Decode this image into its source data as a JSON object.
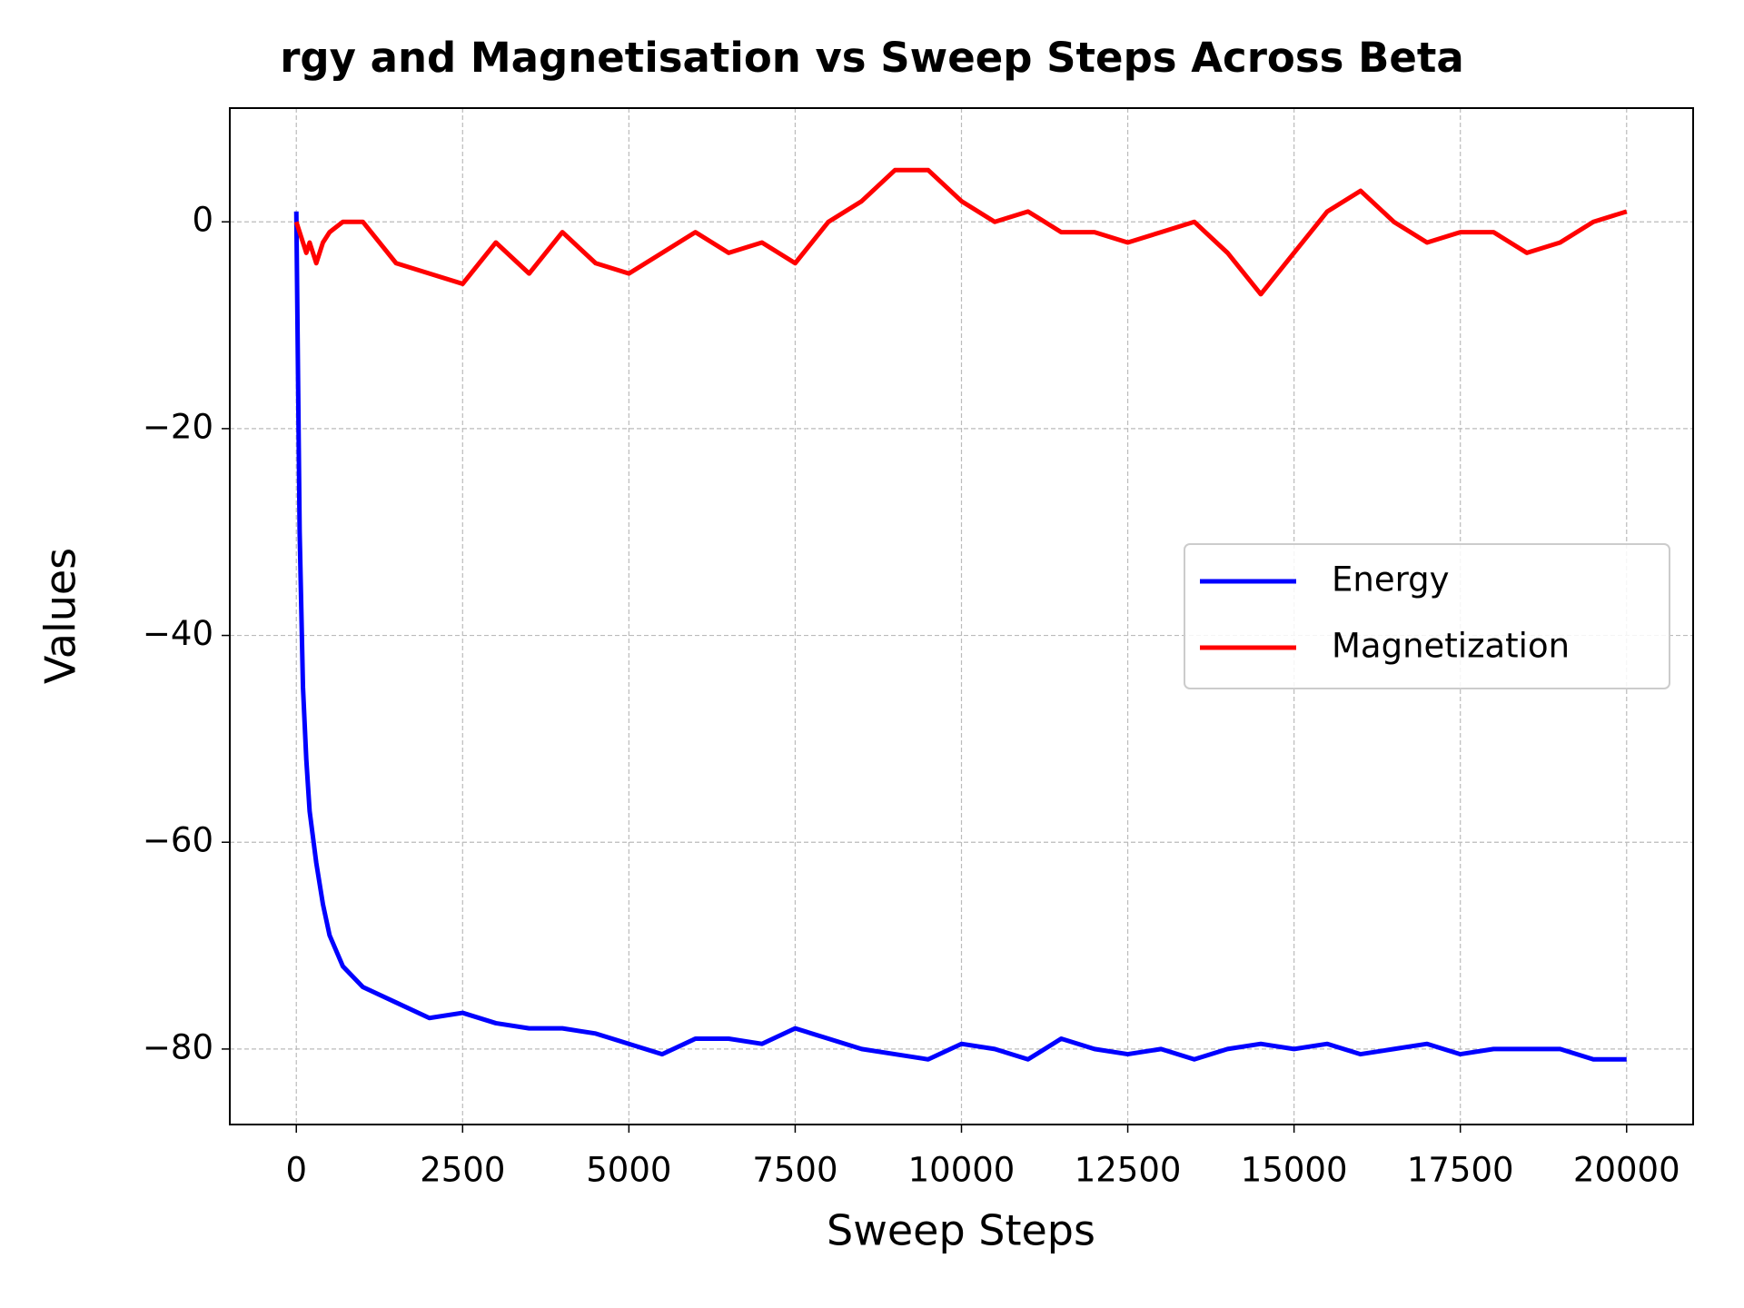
{
  "chart_data": {
    "type": "line",
    "title": "rgy and Magnetisation vs Sweep Steps Across Beta",
    "x_label": "Sweep Steps",
    "y_label": "Values",
    "x": [
      0,
      50,
      100,
      150,
      200,
      300,
      400,
      500,
      700,
      1000,
      1500,
      2000,
      2500,
      3000,
      3500,
      4000,
      4500,
      5000,
      5500,
      6000,
      6500,
      7000,
      7500,
      8000,
      8500,
      9000,
      9500,
      10000,
      10500,
      11000,
      11500,
      12000,
      12500,
      13000,
      13500,
      14000,
      14500,
      15000,
      15500,
      16000,
      16500,
      17000,
      17500,
      18000,
      18500,
      19000,
      19500,
      20000
    ],
    "series": [
      {
        "name": "Energy",
        "color": "#0000ff",
        "values": [
          1,
          -30,
          -45,
          -52,
          -57,
          -62,
          -66,
          -69,
          -72,
          -74,
          -75.5,
          -77,
          -76.5,
          -77.5,
          -78,
          -78,
          -78.5,
          -79.5,
          -80.5,
          -79,
          -79,
          -79.5,
          -78,
          -79,
          -80,
          -80.5,
          -81,
          -79.5,
          -80,
          -81,
          -79,
          -80,
          -80.5,
          -80,
          -81,
          -80,
          -79.5,
          -80,
          -79.5,
          -80.5,
          -80,
          -79.5,
          -80.5,
          -80,
          -80,
          -80,
          -81,
          -81
        ]
      },
      {
        "name": "Magnetization",
        "color": "#ff0000",
        "values": [
          0,
          -1,
          -2,
          -3,
          -2,
          -4,
          -2,
          -1,
          0,
          0,
          -4,
          -5,
          -6,
          -2,
          -5,
          -1,
          -4,
          -5,
          -3,
          -1,
          -3,
          -2,
          -4,
          0,
          2,
          5,
          5,
          2,
          0,
          1,
          -1,
          -1,
          -2,
          -1,
          0,
          -3,
          -7,
          -3,
          1,
          3,
          0,
          -2,
          -1,
          -1,
          -3,
          -2,
          0,
          1
        ]
      }
    ],
    "xlim": [
      -1000,
      21000
    ],
    "xticks": [
      0,
      2500,
      5000,
      7500,
      10000,
      12500,
      15000,
      17500,
      20000
    ],
    "ylim": [
      -87.3,
      11
    ],
    "yticks": [
      {
        "value": -80,
        "label": "−80"
      },
      {
        "value": -60,
        "label": "−60"
      },
      {
        "value": -40,
        "label": "−40"
      },
      {
        "value": -20,
        "label": "−20"
      },
      0
    ],
    "grid": true,
    "legend": "right"
  }
}
